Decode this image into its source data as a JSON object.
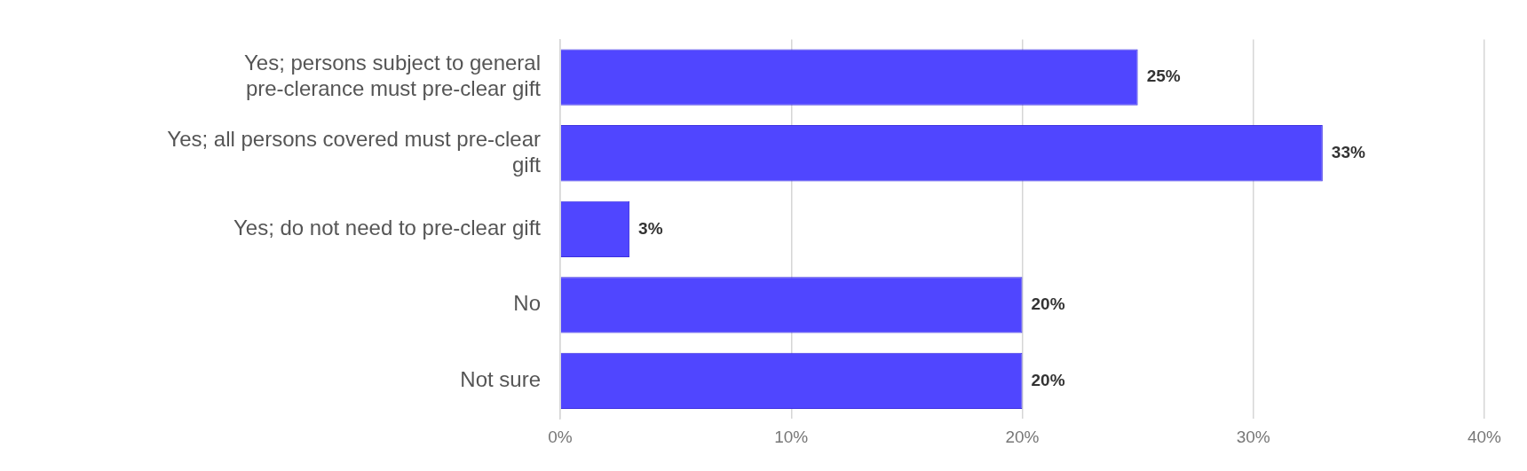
{
  "chart_data": {
    "type": "bar",
    "orientation": "horizontal",
    "categories": [
      "Yes; persons subject to general pre-clerance must pre-clear gift",
      "Yes; all persons covered must pre-clear gift",
      "Yes; do not need to pre-clear gift",
      "No",
      "Not sure"
    ],
    "values": [
      25,
      33,
      3,
      20,
      20
    ],
    "color": "#5046ff",
    "value_labels": [
      "25%",
      "33%",
      "3%",
      "20%",
      "20%"
    ],
    "xlim": [
      0,
      40
    ],
    "xticks": [
      {
        "value": 0,
        "label": "0%"
      },
      {
        "value": 10,
        "label": "10%"
      },
      {
        "value": 20,
        "label": "20%"
      },
      {
        "value": 30,
        "label": "30%"
      },
      {
        "value": 40,
        "label": "40%"
      }
    ],
    "grid": "x",
    "legend": false
  }
}
